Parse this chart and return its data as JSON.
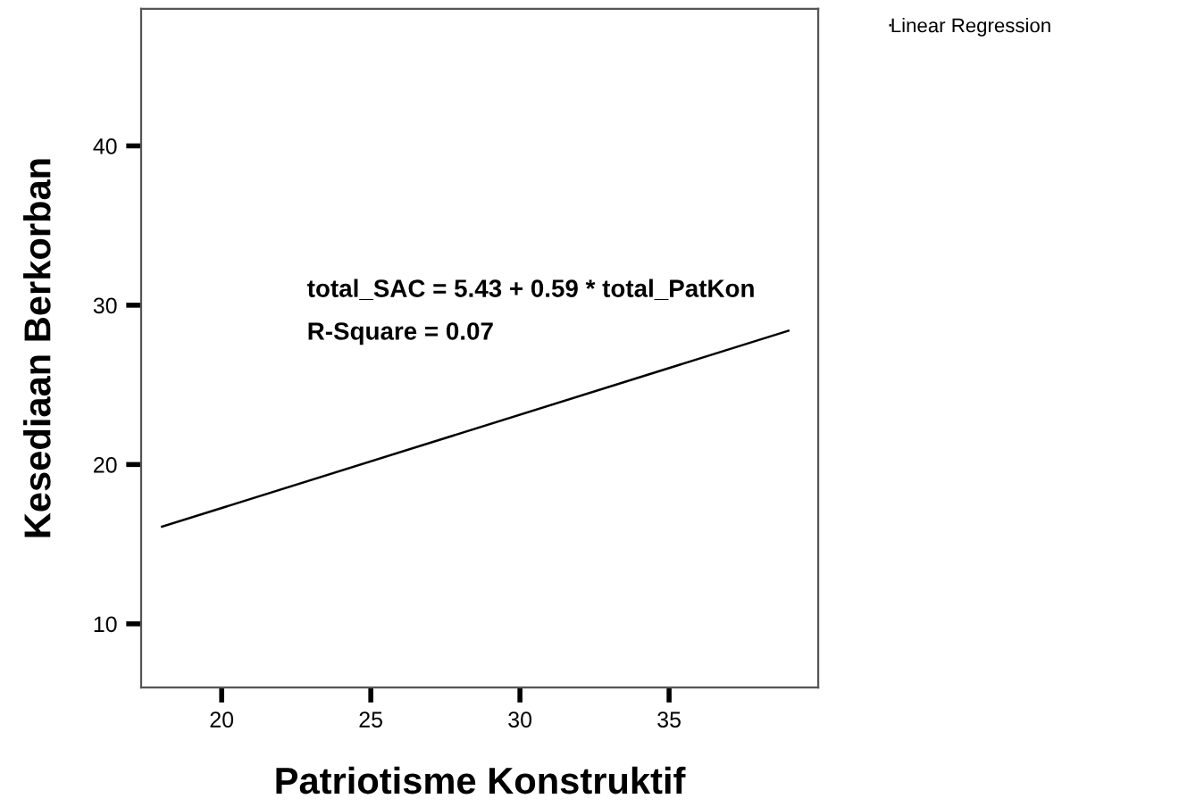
{
  "chart_data": {
    "type": "line",
    "xlabel": "Patriotisme Konstruktif",
    "ylabel": "Kesediaan Berkorban",
    "series": [
      {
        "name": "Linear Regression",
        "color": "#000000",
        "x": [
          18,
          39
        ],
        "values": [
          16.1,
          28.4
        ]
      }
    ],
    "xlim": [
      17.3,
      40
    ],
    "ylim": [
      6,
      48.6
    ],
    "xticks": [
      20,
      25,
      30,
      35
    ],
    "yticks": [
      10,
      20,
      30,
      40
    ],
    "annotations": [
      "total_SAC = 5.43 + 0.59 * total_PatKon",
      "R-Square = 0.07"
    ],
    "grid": false,
    "legend": "top right",
    "marker": "none",
    "line_style": "solid"
  }
}
